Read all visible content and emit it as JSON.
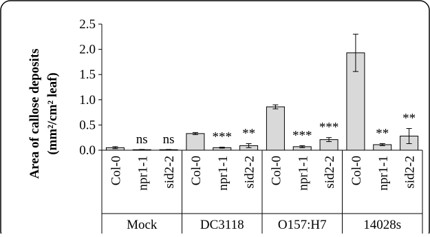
{
  "chart_data": {
    "type": "bar",
    "title": "",
    "ylabel_line1": "Area of callose deposits",
    "ylabel_line2": "(mm²/cm² leaf)",
    "ylim": [
      0,
      2.5
    ],
    "yticks": [
      "0.0",
      "0.5",
      "1.0",
      "1.5",
      "2.0",
      "2.5"
    ],
    "grid": false,
    "bar_color": "#d9d9d9",
    "groups": [
      "Mock",
      "DC3118",
      "O157:H7",
      "14028s"
    ],
    "categories": [
      "Col-0",
      "npr1-1",
      "sid2-2",
      "Col-0",
      "npr1-1",
      "sid2-2",
      "Col-0",
      "npr1-1",
      "sid2-2",
      "Col-0",
      "npr1-1",
      "sid2-2"
    ],
    "values": [
      0.05,
      0.01,
      0.01,
      0.33,
      0.05,
      0.09,
      0.86,
      0.07,
      0.21,
      1.93,
      0.11,
      0.28
    ],
    "errors": [
      0.02,
      0.005,
      0.005,
      0.02,
      0.01,
      0.04,
      0.04,
      0.02,
      0.04,
      0.37,
      0.02,
      0.15
    ],
    "significance": [
      "",
      "ns",
      "ns",
      "",
      "***",
      "**",
      "",
      "***",
      "***",
      "",
      "**",
      "**"
    ]
  }
}
